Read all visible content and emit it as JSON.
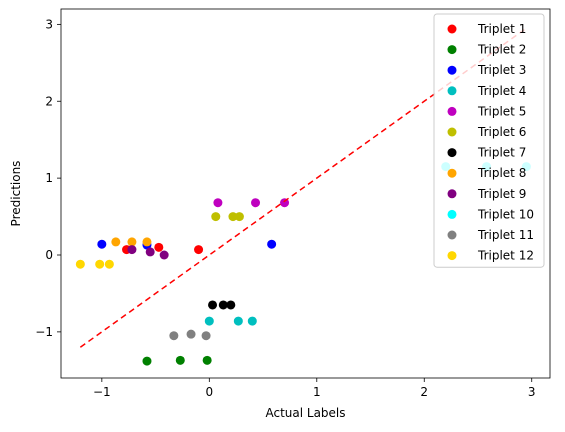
{
  "chart_data": {
    "type": "scatter",
    "xlabel": "Actual Labels",
    "ylabel": "Predictions",
    "xlim": [
      -1.38,
      3.17
    ],
    "ylim": [
      -1.6,
      3.2
    ],
    "x_ticks": [
      -1,
      0,
      1,
      2,
      3
    ],
    "y_ticks": [
      -1,
      0,
      1,
      2,
      3
    ],
    "x_tick_labels": [
      "−1",
      "0",
      "1",
      "2",
      "3"
    ],
    "y_tick_labels": [
      "−1",
      "0",
      "1",
      "2",
      "3"
    ],
    "legend_position": "top-right",
    "reference_line": {
      "x": [
        -1.2,
        2.95
      ],
      "y": [
        -1.2,
        2.95
      ],
      "color": "#ff0000",
      "style": "dashed"
    },
    "series": [
      {
        "name": "Triplet 1",
        "color": "#ff0000",
        "points": [
          [
            -0.77,
            0.07
          ],
          [
            -0.47,
            0.1
          ],
          [
            -0.1,
            0.07
          ]
        ]
      },
      {
        "name": "Triplet 2",
        "color": "#008000",
        "points": [
          [
            -0.58,
            -1.38
          ],
          [
            -0.27,
            -1.37
          ],
          [
            -0.02,
            -1.37
          ]
        ]
      },
      {
        "name": "Triplet 3",
        "color": "#0000ff",
        "points": [
          [
            -1.0,
            0.14
          ],
          [
            -0.58,
            0.13
          ],
          [
            0.58,
            0.14
          ]
        ]
      },
      {
        "name": "Triplet 4",
        "color": "#00bfbf",
        "points": [
          [
            0.0,
            -0.86
          ],
          [
            0.27,
            -0.86
          ],
          [
            0.4,
            -0.86
          ]
        ]
      },
      {
        "name": "Triplet 5",
        "color": "#bf00bf",
        "points": [
          [
            0.08,
            0.68
          ],
          [
            0.43,
            0.68
          ],
          [
            0.7,
            0.68
          ]
        ]
      },
      {
        "name": "Triplet 6",
        "color": "#bfbf00",
        "points": [
          [
            0.06,
            0.5
          ],
          [
            0.22,
            0.5
          ],
          [
            0.28,
            0.5
          ]
        ]
      },
      {
        "name": "Triplet 7",
        "color": "#000000",
        "points": [
          [
            0.03,
            -0.65
          ],
          [
            0.13,
            -0.65
          ],
          [
            0.2,
            -0.65
          ]
        ]
      },
      {
        "name": "Triplet 8",
        "color": "#ffa500",
        "points": [
          [
            -0.87,
            0.17
          ],
          [
            -0.72,
            0.17
          ],
          [
            -0.58,
            0.17
          ]
        ]
      },
      {
        "name": "Triplet 9",
        "color": "#800080",
        "points": [
          [
            -0.72,
            0.07
          ],
          [
            -0.55,
            0.04
          ],
          [
            -0.42,
            0.0
          ]
        ]
      },
      {
        "name": "Triplet 10",
        "color": "#00ffff",
        "points": [
          [
            2.2,
            1.15
          ],
          [
            2.58,
            1.15
          ],
          [
            2.95,
            1.15
          ]
        ]
      },
      {
        "name": "Triplet 11",
        "color": "#808080",
        "points": [
          [
            -0.33,
            -1.05
          ],
          [
            -0.17,
            -1.03
          ],
          [
            -0.03,
            -1.05
          ]
        ]
      },
      {
        "name": "Triplet 12",
        "color": "#ffd700",
        "points": [
          [
            -1.2,
            -0.12
          ],
          [
            -1.02,
            -0.12
          ],
          [
            -0.93,
            -0.12
          ]
        ]
      }
    ]
  }
}
